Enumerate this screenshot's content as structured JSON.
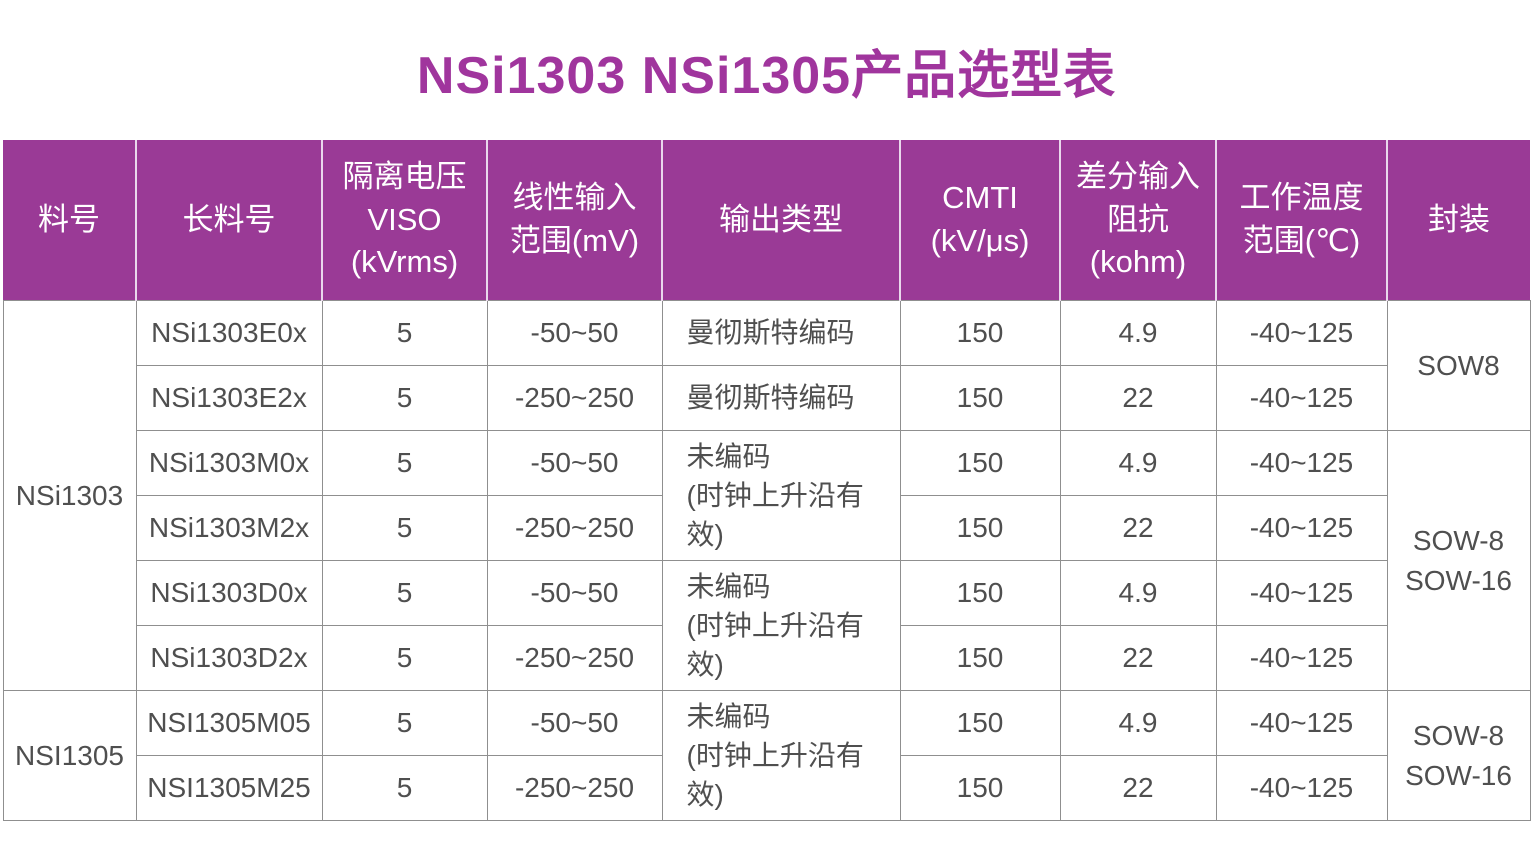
{
  "page": {
    "title": "NSi1303 NSi1305产品选型表"
  },
  "colors": {
    "title_text": "#a0359d",
    "header_bg": "#9a3a96",
    "header_text": "#ffffff",
    "header_separator": "#e9d8ec",
    "body_text": "#4f4f4f",
    "table_border": "#8f8f8f",
    "page_bg": "#ffffff"
  },
  "table": {
    "header": {
      "part": "料号",
      "long_part": "长料号",
      "viso": "隔离电压\nVISO\n(kVrms)",
      "input_range": "线性输入\n范围(mV)",
      "output_type": "输出类型",
      "cmti": "CMTI\n(kV/μs)",
      "impedance": "差分输入\n阻抗\n(kohm)",
      "temp_range": "工作温度\n范围(℃)",
      "package": "封装"
    },
    "part_groups": [
      {
        "label": "NSi1303",
        "row_span": 6
      },
      {
        "label": "NSI1305",
        "row_span": 2
      }
    ],
    "package_groups": [
      {
        "label": "SOW8",
        "row_span": 2
      },
      {
        "label": "SOW-8\nSOW-16",
        "row_span": 4
      },
      {
        "label": "SOW-8\nSOW-16",
        "row_span": 2
      }
    ],
    "rows": [
      {
        "long": "NSi1303E0x",
        "viso": "5",
        "range": "-50~50",
        "output": "曼彻斯特编码",
        "cmti": "150",
        "imp": "4.9",
        "temp": "-40~125"
      },
      {
        "long": "NSi1303E2x",
        "viso": "5",
        "range": "-250~250",
        "output": "曼彻斯特编码",
        "cmti": "150",
        "imp": "22",
        "temp": "-40~125"
      },
      {
        "long": "NSi1303M0x",
        "viso": "5",
        "range": "-50~50",
        "output": "未编码\n(时钟上升沿有效)",
        "cmti": "150",
        "imp": "4.9",
        "temp": "-40~125"
      },
      {
        "long": "NSi1303M2x",
        "viso": "5",
        "range": "-250~250",
        "cmti": "150",
        "imp": "22",
        "temp": "-40~125"
      },
      {
        "long": "NSi1303D0x",
        "viso": "5",
        "range": "-50~50",
        "output": "未编码\n(时钟上升沿有效)",
        "cmti": "150",
        "imp": "4.9",
        "temp": "-40~125"
      },
      {
        "long": "NSi1303D2x",
        "viso": "5",
        "range": "-250~250",
        "cmti": "150",
        "imp": "22",
        "temp": "-40~125"
      },
      {
        "long": "NSI1305M05",
        "viso": "5",
        "range": "-50~50",
        "output": "未编码\n(时钟上升沿有效)",
        "cmti": "150",
        "imp": "4.9",
        "temp": "-40~125"
      },
      {
        "long": "NSI1305M25",
        "viso": "5",
        "range": "-250~250",
        "cmti": "150",
        "imp": "22",
        "temp": "-40~125"
      }
    ]
  }
}
